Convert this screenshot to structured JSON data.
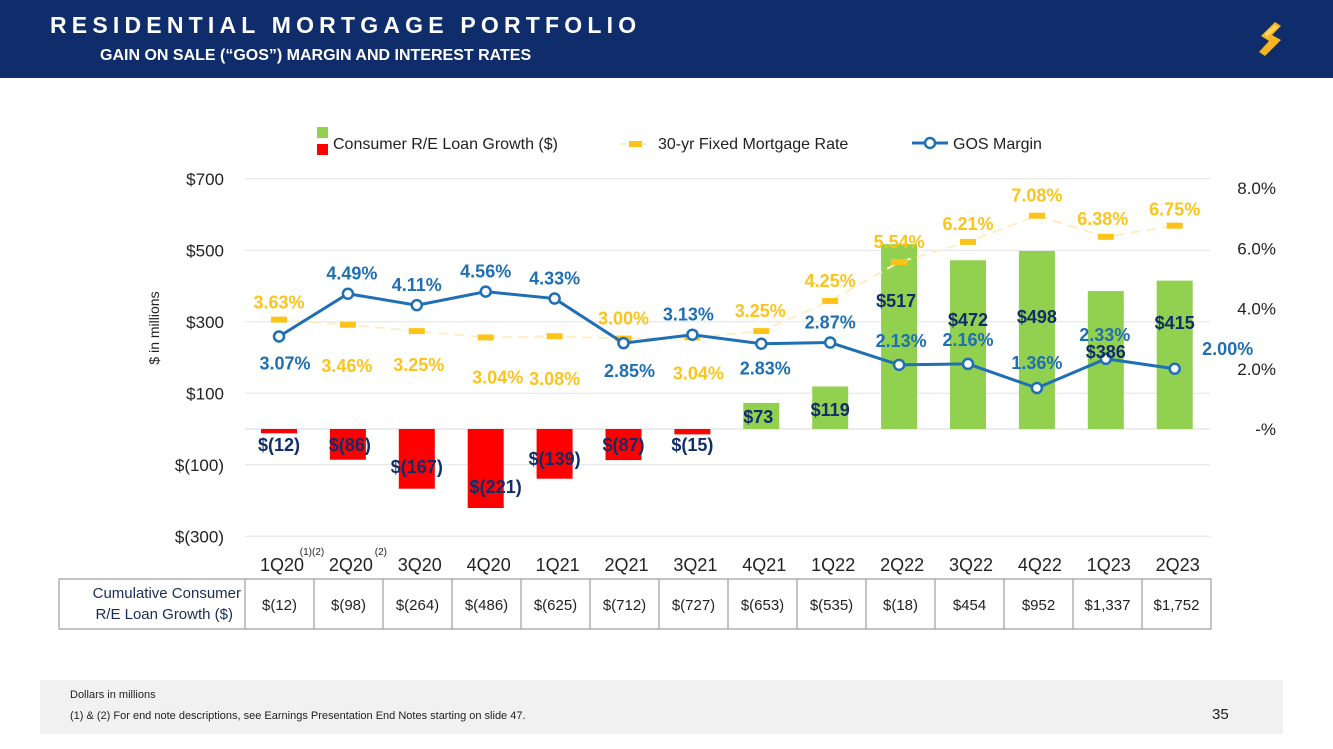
{
  "header": {
    "title": "RESIDENTIAL MORTGAGE PORTFOLIO",
    "subtitle": "GAIN ON SALE (“GOS”) MARGIN AND INTEREST RATES",
    "logo_icon": "bank-logo-icon"
  },
  "colors": {
    "header_bg": "#0f2d6b",
    "bar_positive": "#92d050",
    "bar_negative": "#ff0000",
    "gos_line": "#1f6fb4",
    "mortgage_rate": "#fcc419",
    "bar_label": "#0f2d6b",
    "gos_label": "#1f6fb4"
  },
  "chart_data": {
    "type": "bar",
    "categories": [
      "1Q20",
      "2Q20",
      "3Q20",
      "4Q20",
      "1Q21",
      "2Q21",
      "3Q21",
      "4Q21",
      "1Q22",
      "2Q22",
      "3Q22",
      "4Q22",
      "1Q23",
      "2Q23"
    ],
    "category_notes": [
      "(1)(2)",
      "(2)",
      "",
      "",
      "",
      "",
      "",
      "",
      "",
      "",
      "",
      "",
      "",
      ""
    ],
    "ylabel": "$ in millions",
    "left_axis": {
      "ticks": [
        "$700",
        "$500",
        "$300",
        "$100",
        "$(100)",
        "$(300)"
      ],
      "tick_values": [
        700,
        500,
        300,
        100,
        -100,
        -300
      ],
      "range": [
        -300,
        700
      ]
    },
    "right_axis": {
      "ticks": [
        "8.0%",
        "6.0%",
        "4.0%",
        "2.0%",
        "-%"
      ],
      "tick_values": [
        8,
        6,
        4,
        2,
        0
      ]
    },
    "legend": [
      {
        "name": "Consumer R/E Loan Growth ($)"
      },
      {
        "name": "30-yr Fixed Mortgage Rate"
      },
      {
        "name": "GOS Margin"
      }
    ],
    "series": [
      {
        "name": "Consumer R/E Loan Growth ($)",
        "type": "bar",
        "axis": "left",
        "values": [
          -12,
          -86,
          -167,
          -221,
          -139,
          -87,
          -15,
          73,
          119,
          517,
          472,
          498,
          386,
          415
        ],
        "labels": [
          "$(12)",
          "$(86)",
          "$(167)",
          "$(221)",
          "$(139)",
          "$(87)",
          "$(15)",
          "$73",
          "$119",
          "$517",
          "$472",
          "$498",
          "$386",
          "$415"
        ]
      },
      {
        "name": "30-yr Fixed Mortgage Rate",
        "type": "dash-marker",
        "axis": "right",
        "values": [
          3.63,
          3.46,
          3.25,
          3.04,
          3.08,
          3.0,
          3.04,
          3.25,
          4.25,
          5.54,
          6.21,
          7.08,
          6.38,
          6.75
        ],
        "labels": [
          "3.63%",
          "3.46%",
          "3.25%",
          "3.04%",
          "3.08%",
          "3.00%",
          "3.04%",
          "3.25%",
          "4.25%",
          "5.54%",
          "6.21%",
          "7.08%",
          "6.38%",
          "6.75%"
        ]
      },
      {
        "name": "GOS Margin",
        "type": "line",
        "axis": "right",
        "values": [
          3.07,
          4.49,
          4.11,
          4.56,
          4.33,
          2.85,
          3.13,
          2.83,
          2.87,
          2.13,
          2.16,
          1.36,
          2.33,
          2.0
        ],
        "labels": [
          "3.07%",
          "4.49%",
          "4.11%",
          "4.56%",
          "4.33%",
          "2.85%",
          "3.13%",
          "2.83%",
          "2.87%",
          "2.13%",
          "2.16%",
          "1.36%",
          "2.33%",
          "2.00%"
        ]
      }
    ]
  },
  "table": {
    "row_label_line1": "Cumulative Consumer",
    "row_label_line2": "R/E Loan Growth ($)",
    "values": [
      "$(12)",
      "$(98)",
      "$(264)",
      "$(486)",
      "$(625)",
      "$(712)",
      "$(727)",
      "$(653)",
      "$(535)",
      "$(18)",
      "$454",
      "$952",
      "$1,337",
      "$1,752"
    ]
  },
  "footer": {
    "note1": "Dollars in millions",
    "note2": "(1) & (2)  For end note descriptions, see Earnings Presentation End Notes starting on slide 47.",
    "page_number": "35"
  }
}
